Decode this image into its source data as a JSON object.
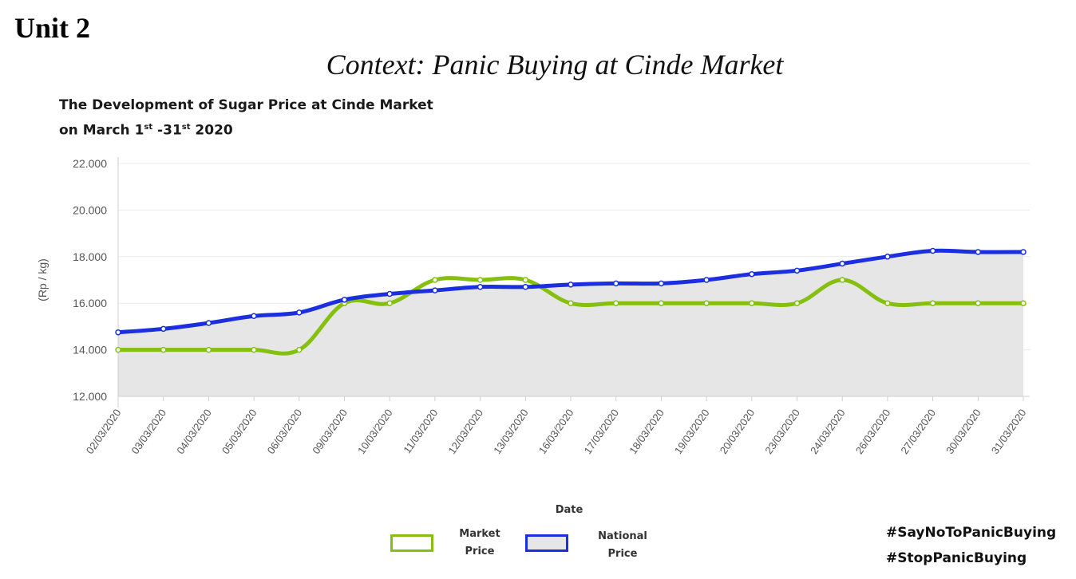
{
  "header": {
    "unit": "Unit 2",
    "context": "Context: Panic Buying at Cinde Market"
  },
  "chart_data": {
    "type": "line",
    "title_line1": "The Development of Sugar Price at Cinde Market",
    "title_line2_a": "on March 1",
    "title_line2_sup1": "st",
    "title_line2_b": " -31",
    "title_line2_sup2": "st",
    "title_line2_c": " 2020",
    "xlabel": "Date",
    "ylabel": "(Rp / kg)",
    "ylim": [
      12000,
      22000
    ],
    "yticks": [
      {
        "value": 12000,
        "label": "12.000"
      },
      {
        "value": 14000,
        "label": "14.000"
      },
      {
        "value": 16000,
        "label": "16.000"
      },
      {
        "value": 18000,
        "label": "18.000"
      },
      {
        "value": 20000,
        "label": "20.000"
      },
      {
        "value": 22000,
        "label": "22.000"
      }
    ],
    "grid": true,
    "categories": [
      "02/03/2020",
      "03/03/2020",
      "04/03/2020",
      "05/03/2020",
      "06/03/2020",
      "09/03/2020",
      "10/03/2020",
      "11/03/2020",
      "12/03/2020",
      "13/03/2020",
      "16/03/2020",
      "17/03/2020",
      "18/03/2020",
      "19/03/2020",
      "20/03/2020",
      "23/03/2020",
      "24/03/2020",
      "26/03/2020",
      "27/03/2020",
      "30/03/2020",
      "31/03/2020"
    ],
    "series": [
      {
        "name": "Market Price",
        "color": "#86c00f",
        "values": [
          14000,
          14000,
          14000,
          14000,
          14000,
          16000,
          16000,
          17000,
          17000,
          17000,
          16000,
          16000,
          16000,
          16000,
          16000,
          16000,
          17000,
          16000,
          16000,
          16000,
          16000
        ]
      },
      {
        "name": "National Price",
        "color": "#1b2fe0",
        "values": [
          14750,
          14900,
          15150,
          15450,
          15600,
          16150,
          16400,
          16550,
          16700,
          16700,
          16800,
          16850,
          16850,
          17000,
          17250,
          17400,
          17700,
          18000,
          18250,
          18200,
          18200
        ]
      }
    ],
    "area_fill": "#e6e6e6",
    "legend_position": "bottom-center"
  },
  "legend": {
    "market_line1": "Market",
    "market_line2": "Price",
    "national_line1": "National",
    "national_line2": "Price"
  },
  "hashtags": [
    "#SayNoToPanicBuying",
    "#StopPanicBuying"
  ]
}
